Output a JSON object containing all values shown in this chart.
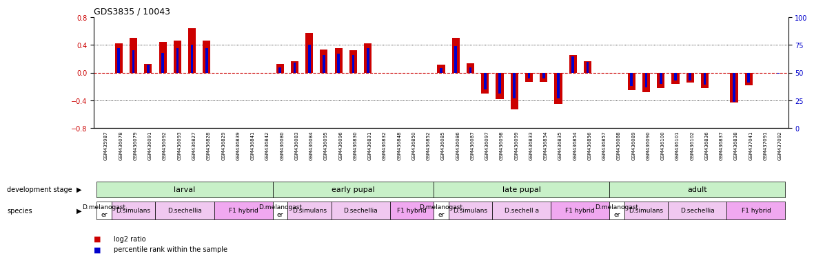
{
  "title": "GDS3835 / 10043",
  "samples": [
    "GSM435987",
    "GSM436078",
    "GSM436079",
    "GSM436091",
    "GSM436092",
    "GSM436093",
    "GSM436827",
    "GSM436828",
    "GSM436829",
    "GSM436839",
    "GSM436841",
    "GSM436842",
    "GSM436080",
    "GSM436083",
    "GSM436084",
    "GSM436095",
    "GSM436096",
    "GSM436830",
    "GSM436831",
    "GSM436832",
    "GSM436848",
    "GSM436850",
    "GSM436852",
    "GSM436085",
    "GSM436086",
    "GSM436087",
    "GSM436097",
    "GSM436098",
    "GSM436099",
    "GSM436833",
    "GSM436834",
    "GSM436835",
    "GSM436854",
    "GSM436856",
    "GSM436857",
    "GSM436088",
    "GSM436089",
    "GSM436090",
    "GSM436100",
    "GSM436101",
    "GSM436102",
    "GSM436836",
    "GSM436837",
    "GSM436838",
    "GSM437041",
    "GSM437091",
    "GSM437092"
  ],
  "log2_ratio": [
    0.0,
    0.42,
    0.5,
    0.13,
    0.44,
    0.46,
    0.64,
    0.46,
    0.0,
    0.0,
    0.0,
    0.0,
    0.13,
    0.17,
    0.57,
    0.33,
    0.35,
    0.32,
    0.42,
    0.0,
    0.0,
    0.0,
    0.0,
    0.12,
    0.5,
    0.14,
    -0.3,
    -0.38,
    -0.53,
    -0.13,
    -0.13,
    -0.45,
    0.26,
    0.17,
    0.0,
    0.0,
    -0.25,
    -0.28,
    -0.22,
    -0.16,
    -0.14,
    -0.22,
    0.0,
    -0.43,
    -0.18,
    0.0,
    0.0
  ],
  "percentile": [
    50,
    72,
    70,
    57,
    68,
    72,
    75,
    72,
    50,
    50,
    50,
    50,
    55,
    59,
    75,
    66,
    67,
    66,
    72,
    50,
    50,
    50,
    50,
    54,
    74,
    55,
    35,
    31,
    27,
    45,
    45,
    27,
    65,
    60,
    50,
    50,
    38,
    37,
    40,
    43,
    43,
    39,
    50,
    24,
    41,
    50,
    49
  ],
  "dev_stages": [
    {
      "label": "larval",
      "start": 0,
      "end": 12,
      "color": "#c8f0c8"
    },
    {
      "label": "early pupal",
      "start": 12,
      "end": 23,
      "color": "#c8f0c8"
    },
    {
      "label": "late pupal",
      "start": 23,
      "end": 35,
      "color": "#c8f0c8"
    },
    {
      "label": "adult",
      "start": 35,
      "end": 47,
      "color": "#c8f0c8"
    }
  ],
  "species_groups": [
    {
      "label": "D.melanogast\ner",
      "start": 0,
      "end": 1,
      "color": "#ffffff"
    },
    {
      "label": "D.simulans",
      "start": 1,
      "end": 4,
      "color": "#f0c8f0"
    },
    {
      "label": "D.sechellia",
      "start": 4,
      "end": 8,
      "color": "#f0c8f0"
    },
    {
      "label": "F1 hybrid",
      "start": 8,
      "end": 12,
      "color": "#f0a8f0"
    },
    {
      "label": "D.melanogast\ner",
      "start": 12,
      "end": 13,
      "color": "#ffffff"
    },
    {
      "label": "D.simulans",
      "start": 13,
      "end": 16,
      "color": "#f0c8f0"
    },
    {
      "label": "D.sechellia",
      "start": 16,
      "end": 20,
      "color": "#f0c8f0"
    },
    {
      "label": "F1 hybrid",
      "start": 20,
      "end": 23,
      "color": "#f0a8f0"
    },
    {
      "label": "D.melanogast\ner",
      "start": 23,
      "end": 24,
      "color": "#ffffff"
    },
    {
      "label": "D.simulans",
      "start": 24,
      "end": 27,
      "color": "#f0c8f0"
    },
    {
      "label": "D.sechell a",
      "start": 27,
      "end": 31,
      "color": "#f0c8f0"
    },
    {
      "label": "F1 hybrid",
      "start": 31,
      "end": 35,
      "color": "#f0a8f0"
    },
    {
      "label": "D.melanogast\ner",
      "start": 35,
      "end": 36,
      "color": "#ffffff"
    },
    {
      "label": "D.simulans",
      "start": 36,
      "end": 39,
      "color": "#f0c8f0"
    },
    {
      "label": "D.sechellia",
      "start": 39,
      "end": 43,
      "color": "#f0c8f0"
    },
    {
      "label": "F1 hybrid",
      "start": 43,
      "end": 47,
      "color": "#f0a8f0"
    }
  ],
  "bar_color_red": "#cc0000",
  "bar_color_blue": "#0000cc",
  "ylim": [
    -0.8,
    0.8
  ],
  "yticks_left": [
    -0.8,
    -0.4,
    0.0,
    0.4,
    0.8
  ],
  "yticks_right": [
    0,
    25,
    50,
    75,
    100
  ],
  "hline_zero_color": "#cc0000",
  "hline_dotted_color": "#000000",
  "background_color": "#ffffff"
}
